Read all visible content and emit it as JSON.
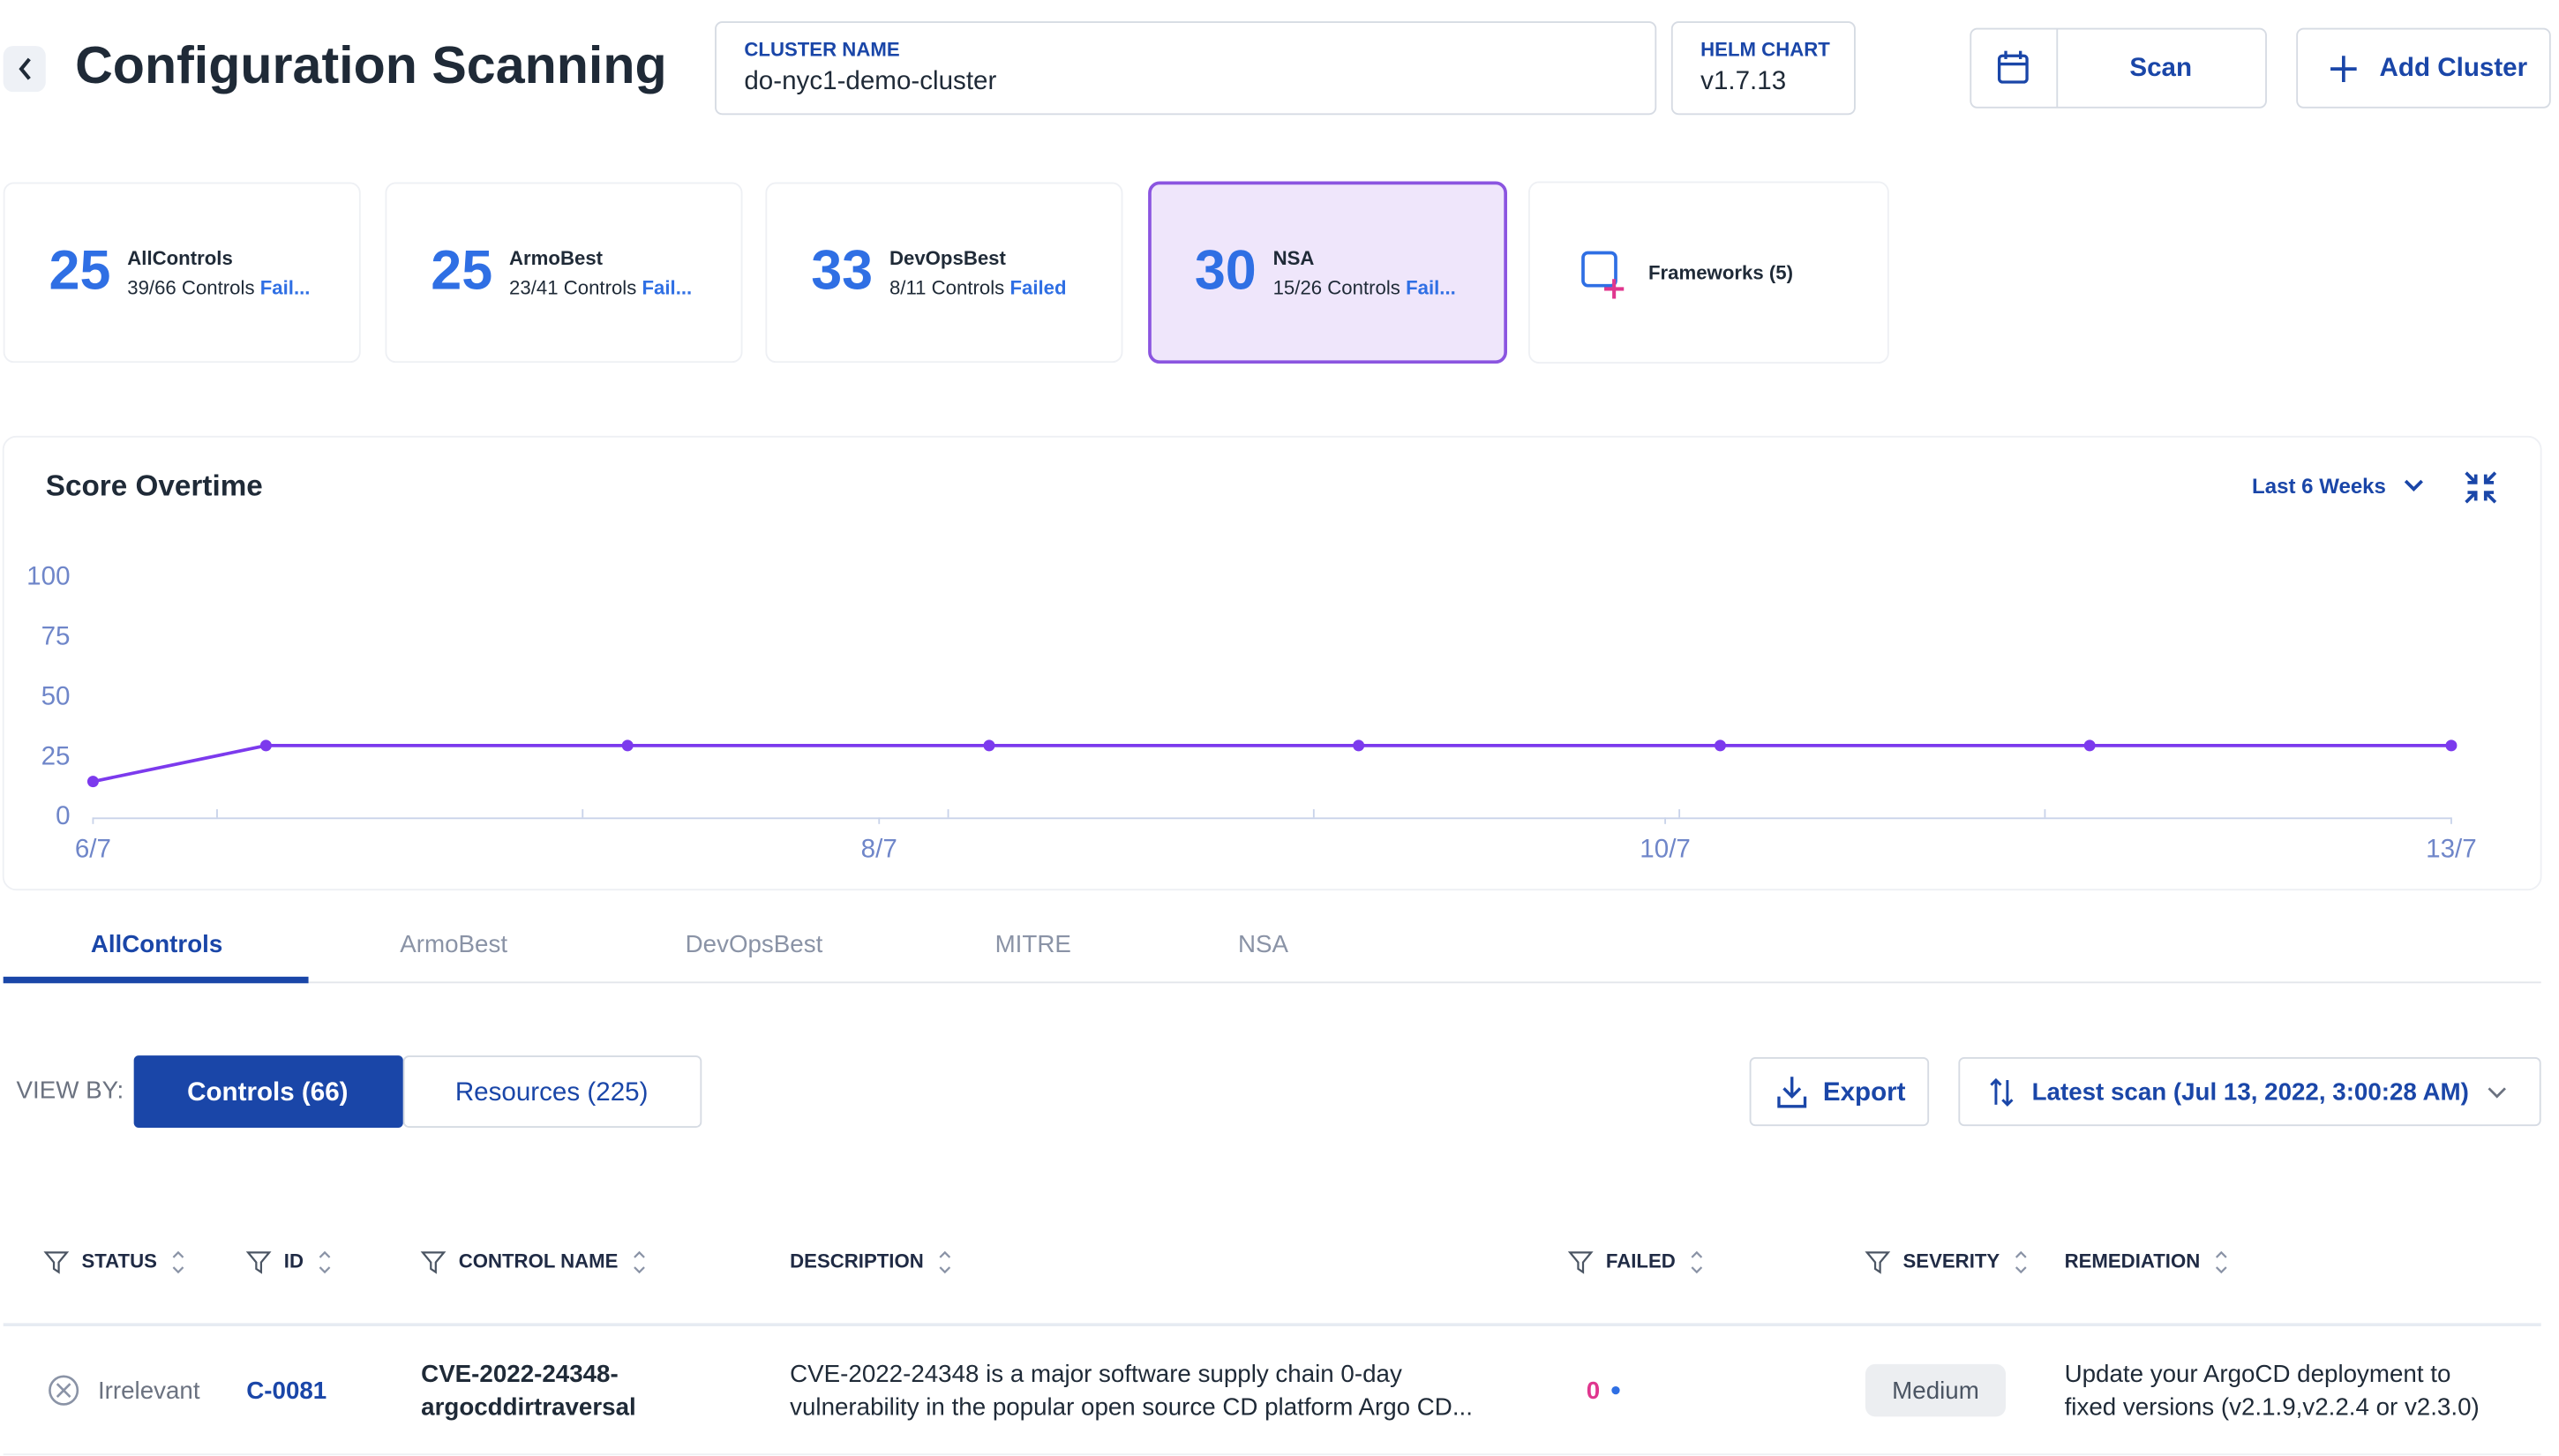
{
  "header": {
    "title": "Configuration Scanning",
    "cluster_label": "CLUSTER NAME",
    "cluster_name": "do-nyc1-demo-cluster",
    "helm_label": "HELM CHART",
    "helm_version": "v1.7.13",
    "scan": "Scan",
    "add_cluster": "Add Cluster"
  },
  "cards": [
    {
      "score": "25",
      "name": "AllControls",
      "controls": "39/66 Controls",
      "status": "Fail..."
    },
    {
      "score": "25",
      "name": "ArmoBest",
      "controls": "23/41 Controls",
      "status": "Fail..."
    },
    {
      "score": "33",
      "name": "DevOpsBest",
      "controls": "8/11 Controls",
      "status": "Failed"
    },
    {
      "score": "30",
      "name": "NSA",
      "controls": "15/26 Controls",
      "status": "Fail..."
    }
  ],
  "frameworks": "Frameworks (5)",
  "chart_data": {
    "type": "line",
    "title": "Score Overtime",
    "range": "Last 6 Weeks",
    "x": [
      0,
      0.22,
      0.68,
      1.14,
      1.61,
      2.07,
      2.54,
      3
    ],
    "series": [
      {
        "name": "NSA",
        "color": "#7c3aed",
        "values": [
          15,
          30,
          30,
          30,
          30,
          30,
          30,
          30
        ]
      }
    ],
    "xlim": [
      0,
      3
    ],
    "xticks": [
      {
        "value": 0,
        "label": "6/7"
      },
      {
        "value": 1,
        "label": "8/7"
      },
      {
        "value": 2,
        "label": "10/7"
      },
      {
        "value": 3,
        "label": "13/7"
      }
    ],
    "ylim": [
      0,
      100
    ],
    "yticks": [
      0,
      25,
      50,
      75,
      100
    ]
  },
  "tabs": [
    "AllControls",
    "ArmoBest",
    "DevOpsBest",
    "MITRE",
    "NSA"
  ],
  "view_by": {
    "label": "VIEW BY:",
    "controls": "Controls",
    "controls_count": "(66)",
    "resources": "Resources",
    "resources_count": "(225)"
  },
  "export": "Export",
  "sort": "Latest scan (Jul 13, 2022, 3:00:28 AM)",
  "table": {
    "columns": [
      "STATUS",
      "ID",
      "CONTROL NAME",
      "DESCRIPTION",
      "FAILED",
      "SEVERITY",
      "REMEDIATION"
    ],
    "rows": [
      {
        "status": "Irrelevant",
        "id": "C-0081",
        "name": [
          "CVE-2022-24348-",
          "argocddirtraversal"
        ],
        "description": [
          "CVE-2022-24348 is a major software supply chain 0-day",
          "vulnerability in the popular open source CD platform Argo CD..."
        ],
        "failed": "0",
        "severity": "Medium",
        "remediation": [
          "Update your ArgoCD deployment to",
          "fixed versions (v2.1.9,v2.2.4 or v2.3.0)"
        ]
      }
    ]
  }
}
